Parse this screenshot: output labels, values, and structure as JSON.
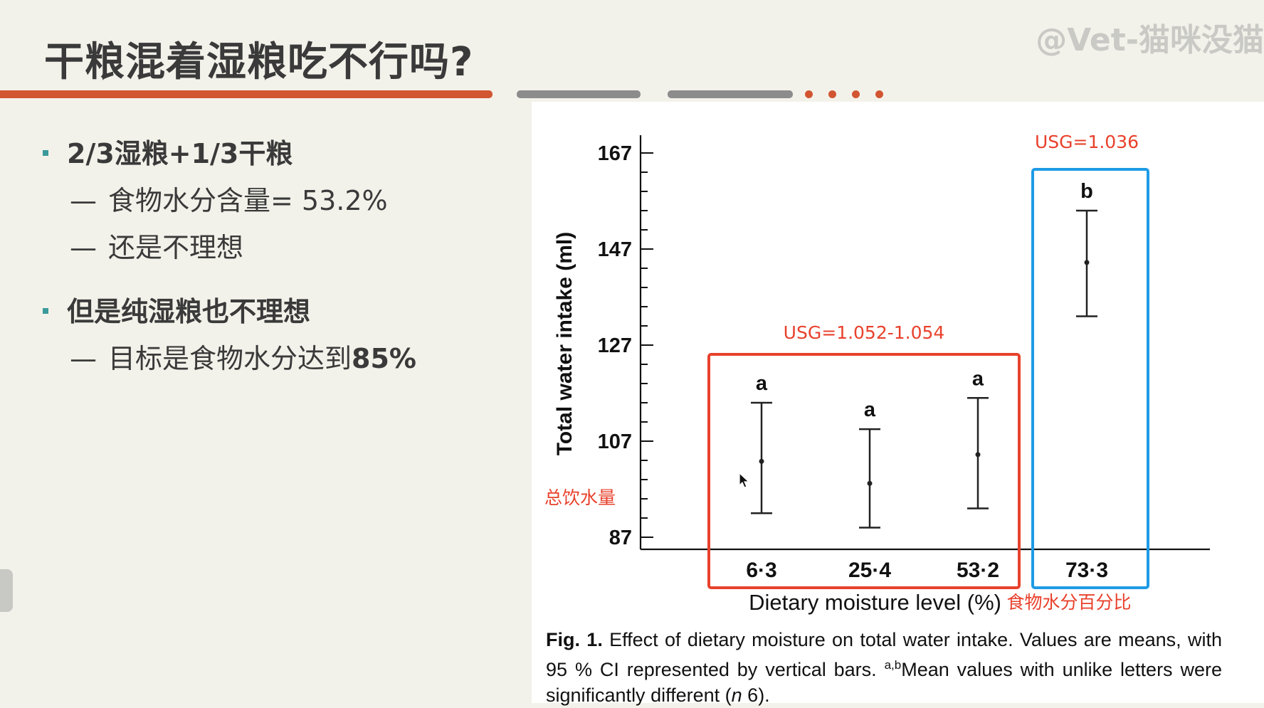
{
  "slide": {
    "title": "干粮混着湿粮吃不行吗?",
    "watermark": "@Vet-猫咪没猫"
  },
  "bullets": [
    {
      "text": "2/3湿粮+1/3干粮",
      "subs": [
        "食物水分含量= 53.2%",
        "还是不理想"
      ]
    },
    {
      "text": "但是纯湿粮也不理想",
      "sub_prefix": "目标是食物水分达到",
      "sub_highlight": "85%"
    }
  ],
  "chart_data": {
    "type": "errorbar",
    "ylabel": "Total water intake (ml)",
    "ylabel_annotation": "总饮水量",
    "xlabel": "Dietary moisture level (%)",
    "xlabel_annotation": "食物水分百分比",
    "ylim": [
      85,
      167
    ],
    "yticks": [
      87,
      107,
      127,
      147,
      167
    ],
    "categories": [
      "6·3",
      "25·4",
      "53·2",
      "73·3"
    ],
    "means": [
      102.8,
      98.2,
      104.2,
      144.2
    ],
    "ci_low": [
      92,
      89,
      93,
      133
    ],
    "ci_high": [
      115,
      109.5,
      116,
      155
    ],
    "letters": [
      "a",
      "a",
      "a",
      "b"
    ],
    "groups": [
      {
        "label": "USG=1.052-1.054",
        "color": "#e8412c",
        "categories": [
          "6·3",
          "25·4",
          "53·2"
        ]
      },
      {
        "label": "USG=1.036",
        "color": "#1e9be6",
        "categories": [
          "73·3"
        ]
      }
    ],
    "caption": {
      "fig_label": "Fig. 1.",
      "text_1": " Effect of dietary moisture on total water intake. Values are means, with 95 % CI represented by vertical bars. ",
      "superscript": "a,b",
      "text_2": "Mean values with unlike letters were significantly different (",
      "n_symbol": "n",
      "text_3": " 6)."
    }
  }
}
